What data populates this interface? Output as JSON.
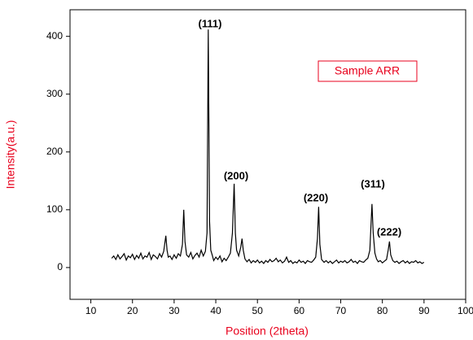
{
  "chart_data": {
    "type": "line",
    "xlabel": "Position (2theta)",
    "ylabel": "Intensity(a.u.)",
    "xlim": [
      5,
      100
    ],
    "ylim": [
      -55,
      446
    ],
    "xticks": [
      10,
      20,
      30,
      40,
      50,
      60,
      70,
      80,
      90,
      100
    ],
    "yticks": [
      0,
      100,
      200,
      300,
      400
    ],
    "legend": "upper right",
    "annotations": [
      "(111)",
      "(200)",
      "(220)",
      "(311)",
      "(222)"
    ],
    "series": [
      {
        "name": "Sample ARR",
        "color": "#000000",
        "x": [
          15,
          15.5,
          16,
          16.5,
          17,
          17.5,
          18,
          18.5,
          19,
          19.5,
          20,
          20.5,
          21,
          21.5,
          22,
          22.5,
          23,
          23.5,
          24,
          24.5,
          25,
          25.5,
          26,
          26.5,
          27,
          27.5,
          28,
          28.3,
          28.6,
          29,
          29.5,
          30,
          30.5,
          31,
          31.5,
          32,
          32.3,
          32.6,
          33,
          33.5,
          34,
          34.5,
          35,
          35.5,
          36,
          36.5,
          37,
          37.5,
          37.9,
          38.2,
          38.5,
          38.8,
          39.2,
          39.5,
          40,
          40.5,
          41,
          41.5,
          42,
          42.5,
          43,
          43.5,
          44,
          44.4,
          44.7,
          45,
          45.5,
          46,
          46.3,
          46.6,
          47,
          47.5,
          48,
          48.5,
          49,
          49.5,
          50,
          50.5,
          51,
          51.5,
          52,
          52.5,
          53,
          53.5,
          54,
          54.5,
          55,
          55.5,
          56,
          56.5,
          57,
          57.5,
          58,
          58.5,
          59,
          59.5,
          60,
          60.5,
          61,
          61.5,
          62,
          62.5,
          63,
          63.5,
          64,
          64.4,
          64.7,
          65,
          65.4,
          66,
          66.5,
          67,
          67.5,
          68,
          68.5,
          69,
          69.5,
          70,
          70.5,
          71,
          71.5,
          72,
          72.5,
          73,
          73.5,
          74,
          74.5,
          75,
          75.5,
          76,
          76.5,
          77,
          77.3,
          77.5,
          77.8,
          78.2,
          78.6,
          79,
          79.5,
          80,
          80.5,
          81,
          81.4,
          81.7,
          82,
          82.5,
          83,
          83.5,
          84,
          84.5,
          85,
          85.5,
          86,
          86.5,
          87,
          87.5,
          88,
          88.5,
          89,
          89.5,
          90
        ],
        "values": [
          16,
          20,
          14,
          22,
          15,
          19,
          24,
          13,
          20,
          17,
          23,
          14,
          21,
          16,
          25,
          15,
          20,
          18,
          26,
          14,
          22,
          19,
          15,
          24,
          18,
          28,
          55,
          30,
          18,
          20,
          14,
          22,
          16,
          24,
          20,
          40,
          100,
          45,
          22,
          18,
          26,
          15,
          21,
          25,
          18,
          30,
          20,
          28,
          60,
          412,
          80,
          30,
          20,
          12,
          18,
          14,
          20,
          10,
          16,
          12,
          18,
          25,
          60,
          145,
          60,
          30,
          20,
          35,
          50,
          30,
          15,
          10,
          14,
          8,
          12,
          9,
          13,
          8,
          11,
          7,
          12,
          9,
          14,
          10,
          12,
          16,
          10,
          13,
          8,
          11,
          18,
          9,
          12,
          7,
          10,
          8,
          13,
          9,
          11,
          7,
          12,
          10,
          9,
          13,
          18,
          50,
          105,
          40,
          14,
          9,
          12,
          8,
          11,
          7,
          10,
          13,
          8,
          11,
          9,
          12,
          8,
          10,
          14,
          9,
          11,
          7,
          12,
          10,
          9,
          13,
          16,
          30,
          80,
          110,
          60,
          25,
          15,
          10,
          12,
          8,
          11,
          14,
          30,
          45,
          22,
          12,
          9,
          11,
          7,
          10,
          12,
          8,
          11,
          7,
          10,
          9,
          12,
          8,
          10,
          7,
          9
        ]
      }
    ]
  }
}
